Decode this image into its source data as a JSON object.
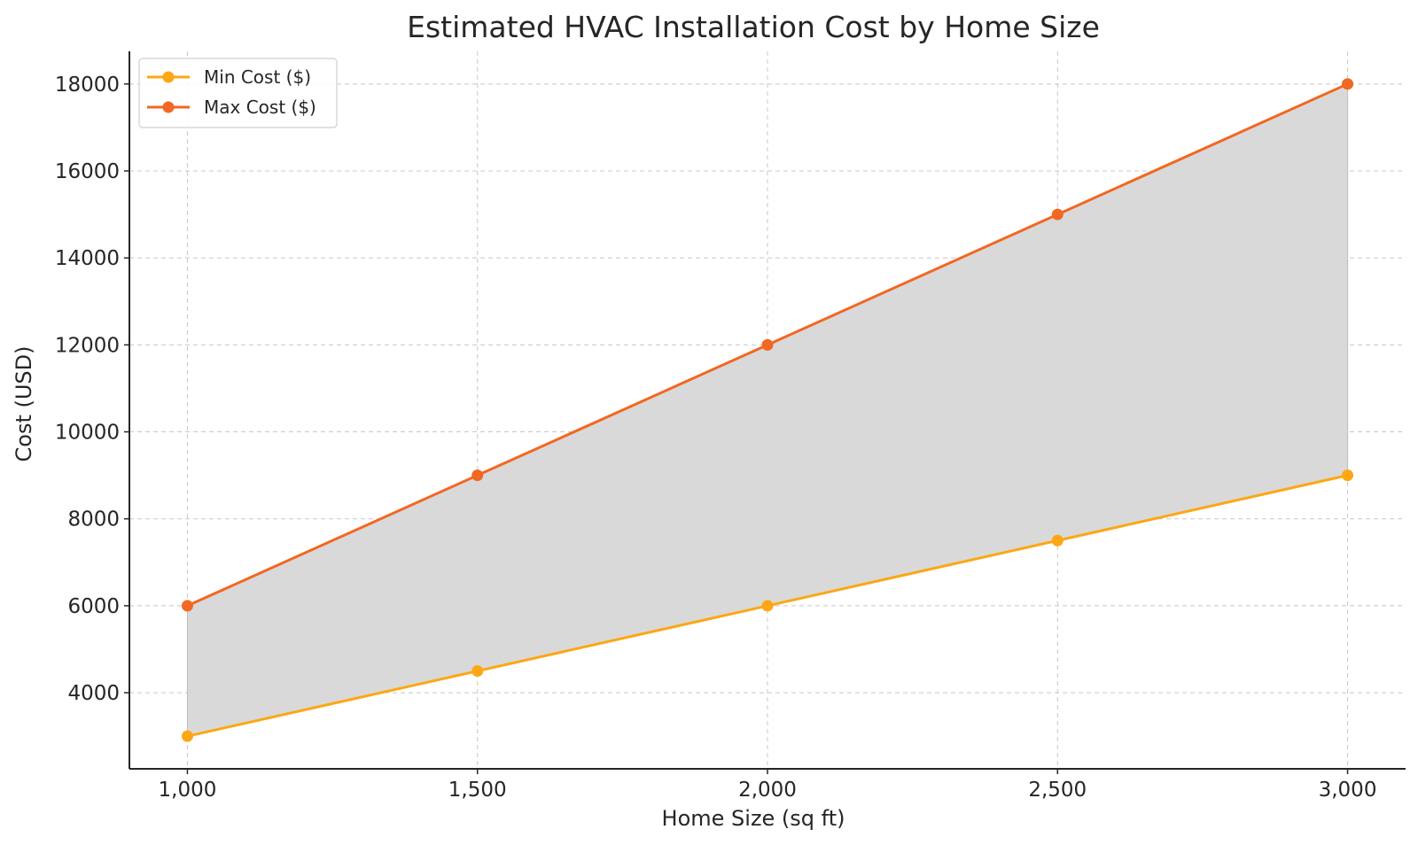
{
  "chart_data": {
    "type": "line",
    "title": "Estimated HVAC Installation Cost by Home Size",
    "xlabel": "Home Size (sq ft)",
    "ylabel": "Cost (USD)",
    "x": [
      1000,
      1500,
      2000,
      2500,
      3000
    ],
    "x_tick_labels": [
      "1,000",
      "1,500",
      "2,000",
      "2,500",
      "3,000"
    ],
    "y_ticks": [
      4000,
      6000,
      8000,
      10000,
      12000,
      14000,
      16000,
      18000
    ],
    "y_tick_labels": [
      "4000",
      "6000",
      "8000",
      "10000",
      "12000",
      "14000",
      "16000",
      "18000"
    ],
    "xlim": [
      900,
      3100
    ],
    "ylim": [
      2250,
      18750
    ],
    "grid": true,
    "legend_position": "top-left",
    "fill_between": {
      "lower": "Min Cost ($)",
      "upper": "Max Cost ($)",
      "color": "#d9d9d9"
    },
    "series": [
      {
        "name": "Min Cost ($)",
        "values": [
          3000,
          4500,
          6000,
          7500,
          9000
        ],
        "color": "#fca713"
      },
      {
        "name": "Max Cost ($)",
        "values": [
          6000,
          9000,
          12000,
          15000,
          18000
        ],
        "color": "#f26722"
      }
    ]
  }
}
